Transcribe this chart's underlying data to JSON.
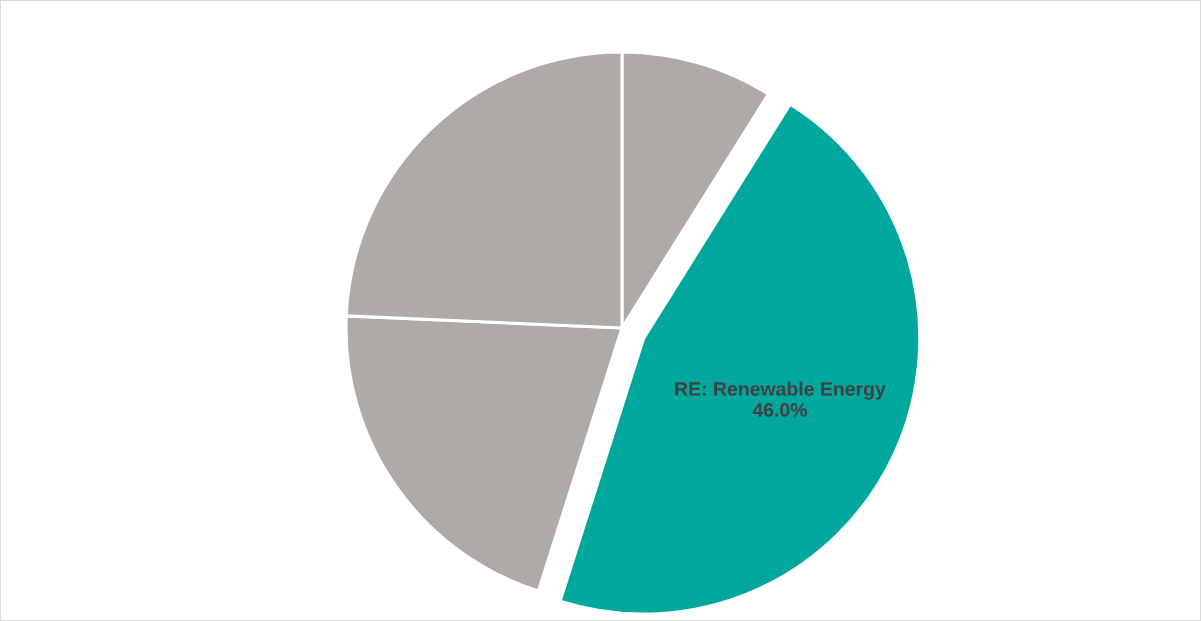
{
  "chart_data": {
    "type": "pie",
    "categories": [
      null,
      "RE: Renewable Energy",
      null,
      null
    ],
    "values": [
      8.9,
      46.0,
      20.8,
      24.3
    ],
    "colors": [
      "#adaaa8",
      "#00a79d",
      "#adaaa8",
      "#adaaa8"
    ],
    "value_labels": [
      null,
      "46.0%",
      null,
      null
    ],
    "legend": false
  }
}
